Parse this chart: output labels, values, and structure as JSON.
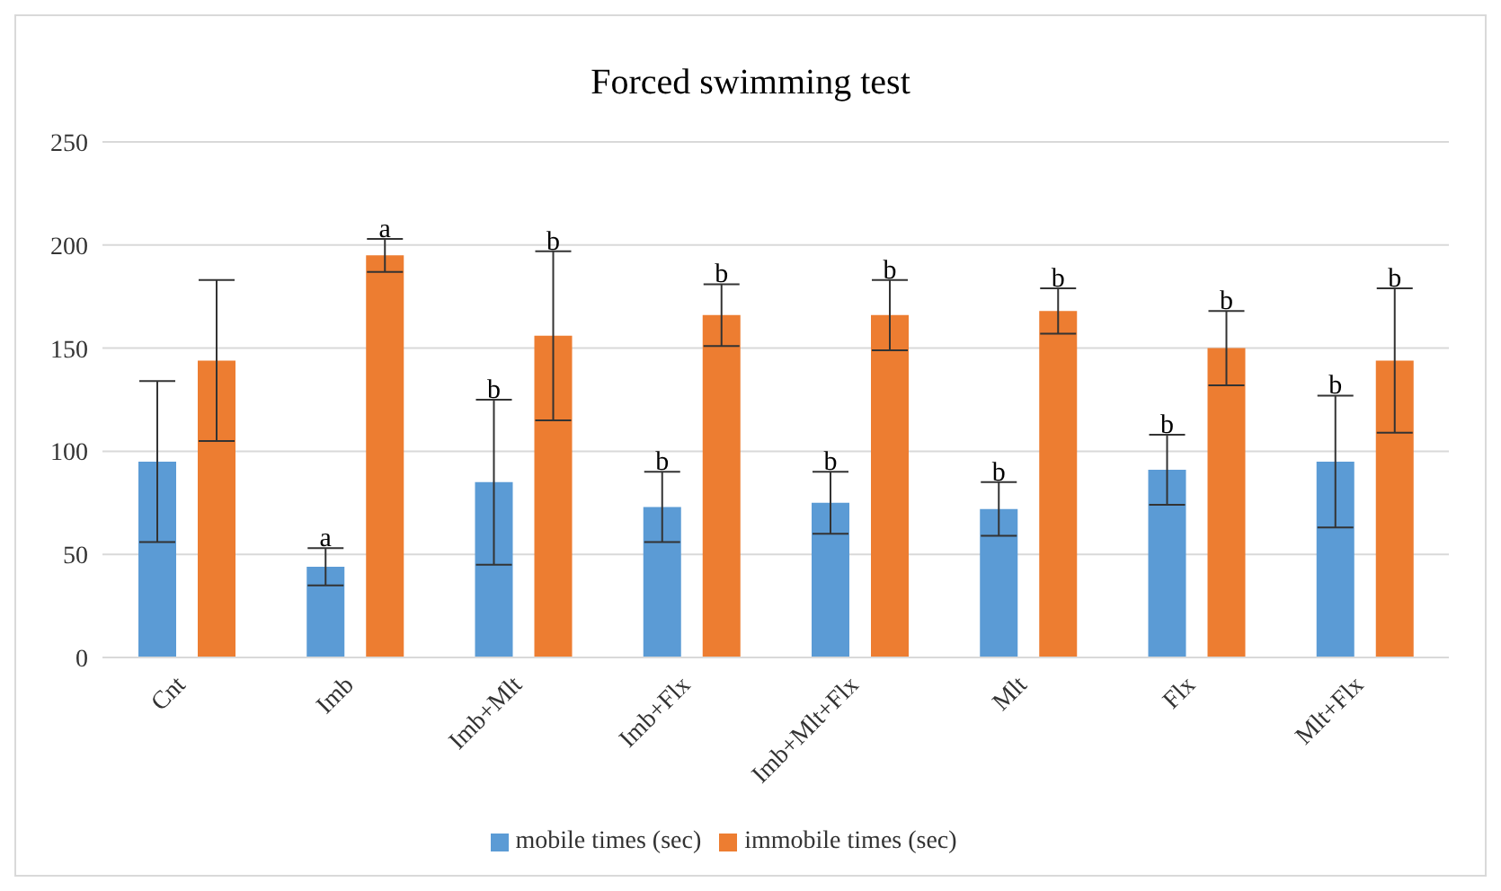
{
  "chart_data": {
    "type": "bar",
    "title": "Forced swimming  test",
    "categories": [
      "Cnt",
      "Imb",
      "Imb+Mlt",
      "Imb+Flx",
      "Imb+Mlt+Flx",
      "Mlt",
      "Flx",
      "Mlt+Flx"
    ],
    "series": [
      {
        "name": "mobile times (sec)",
        "color": "#5b9bd5",
        "values": [
          95,
          44,
          85,
          73,
          75,
          72,
          91,
          95
        ],
        "errors": [
          39,
          9,
          40,
          17,
          15,
          13,
          17,
          32
        ],
        "value_labels": [
          null,
          "a",
          "b",
          "b",
          "b",
          "b",
          "b",
          "b"
        ]
      },
      {
        "name": "immobile times (sec)",
        "color": "#ed7d31",
        "values": [
          144,
          195,
          156,
          166,
          166,
          168,
          150,
          144
        ],
        "errors": [
          39,
          8,
          41,
          15,
          17,
          11,
          18,
          35
        ],
        "value_labels": [
          null,
          "a",
          "b",
          "b",
          "b",
          "b",
          "b",
          "b"
        ]
      }
    ],
    "ylim": [
      0,
      250
    ],
    "yticks": [
      0,
      50,
      100,
      150,
      200,
      250
    ],
    "grid": "y",
    "legend": "bottom"
  }
}
